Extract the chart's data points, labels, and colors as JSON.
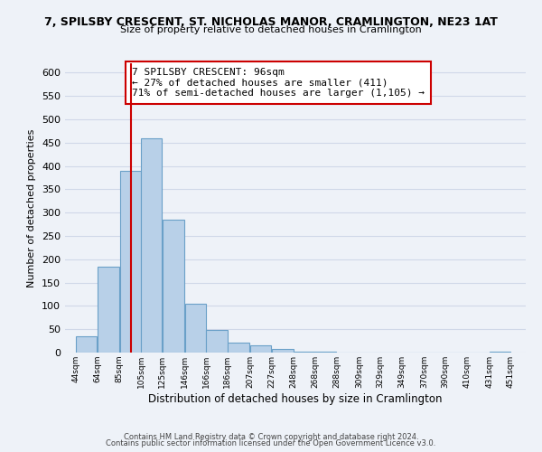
{
  "title_line1": "7, SPILSBY CRESCENT, ST. NICHOLAS MANOR, CRAMLINGTON, NE23 1AT",
  "title_line2": "Size of property relative to detached houses in Cramlington",
  "xlabel": "Distribution of detached houses by size in Cramlington",
  "ylabel": "Number of detached properties",
  "bar_left_edges": [
    44,
    64,
    85,
    105,
    125,
    146,
    166,
    186,
    207,
    227,
    248,
    268,
    288,
    309,
    329,
    349,
    370,
    390,
    410,
    431
  ],
  "bar_widths": [
    20,
    21,
    20,
    20,
    21,
    20,
    20,
    21,
    20,
    21,
    20,
    20,
    21,
    20,
    20,
    21,
    20,
    20,
    21,
    20
  ],
  "bar_heights": [
    35,
    185,
    390,
    460,
    285,
    105,
    48,
    22,
    15,
    8,
    1,
    1,
    0,
    0,
    0,
    0,
    0,
    0,
    0,
    1
  ],
  "bar_color": "#b8d0e8",
  "bar_edgecolor": "#6aa0c8",
  "vline_x": 96,
  "vline_color": "#cc0000",
  "annotation_box_text": "7 SPILSBY CRESCENT: 96sqm\n← 27% of detached houses are smaller (411)\n71% of semi-detached houses are larger (1,105) →",
  "annotation_box_facecolor": "white",
  "annotation_box_edgecolor": "#cc0000",
  "ylim": [
    0,
    620
  ],
  "yticks": [
    0,
    50,
    100,
    150,
    200,
    250,
    300,
    350,
    400,
    450,
    500,
    550,
    600
  ],
  "xtick_labels": [
    "44sqm",
    "64sqm",
    "85sqm",
    "105sqm",
    "125sqm",
    "146sqm",
    "166sqm",
    "186sqm",
    "207sqm",
    "227sqm",
    "248sqm",
    "268sqm",
    "288sqm",
    "309sqm",
    "329sqm",
    "349sqm",
    "370sqm",
    "390sqm",
    "410sqm",
    "431sqm",
    "451sqm"
  ],
  "xtick_positions": [
    44,
    64,
    85,
    105,
    125,
    146,
    166,
    186,
    207,
    227,
    248,
    268,
    288,
    309,
    329,
    349,
    370,
    390,
    410,
    431,
    451
  ],
  "grid_color": "#d0d8e8",
  "background_color": "#eef2f8",
  "footer_line1": "Contains HM Land Registry data © Crown copyright and database right 2024.",
  "footer_line2": "Contains public sector information licensed under the Open Government Licence v3.0."
}
